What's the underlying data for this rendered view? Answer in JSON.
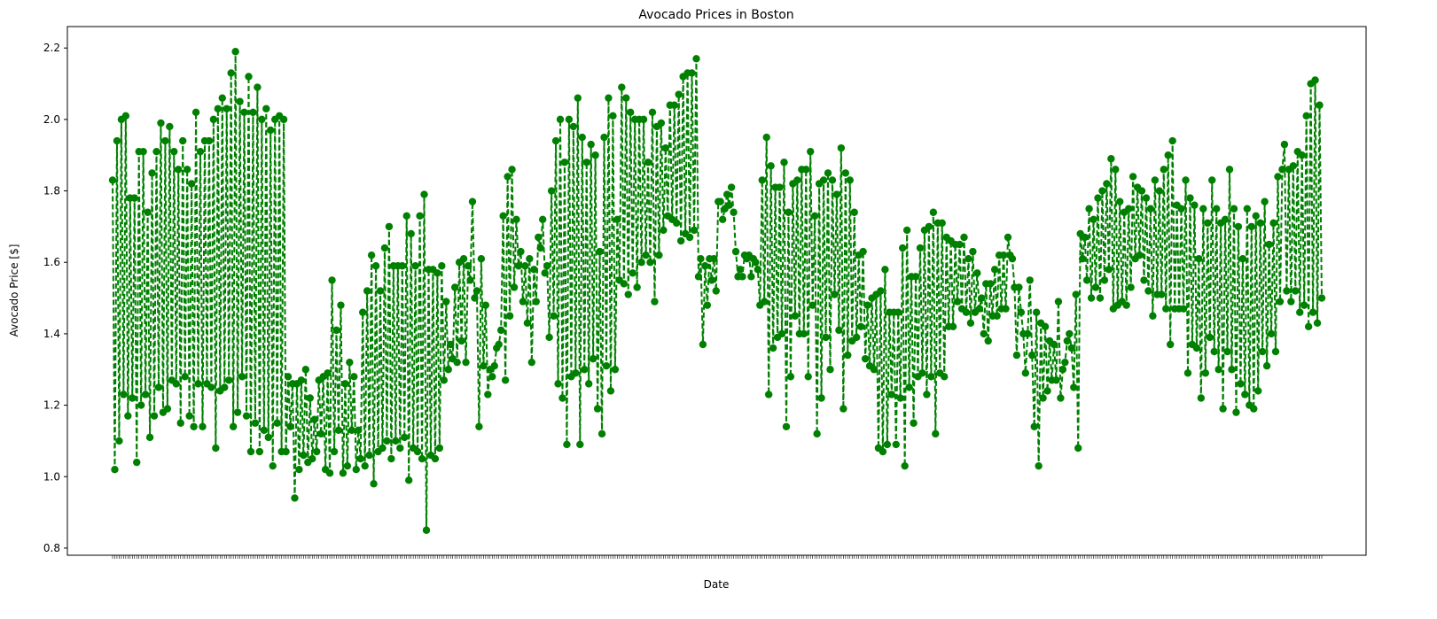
{
  "chart_data": {
    "type": "line",
    "title": "Avocado Prices in Boston",
    "xlabel": "Date",
    "ylabel": "Avocado Price [$]",
    "ylim": [
      0.78,
      2.26
    ],
    "yticks": [
      "0.8",
      "1.0",
      "1.2",
      "1.4",
      "1.6",
      "1.8",
      "2.0",
      "2.2"
    ],
    "grid": false,
    "legend": "none",
    "line_style": "dashed with circle markers",
    "color": "#008000",
    "series": [
      {
        "values": [
          1.83,
          1.02,
          1.94,
          1.1,
          2.0,
          1.23,
          2.01,
          1.17,
          1.78,
          1.22,
          1.78,
          1.04,
          1.91,
          1.2,
          1.91,
          1.23,
          1.74,
          1.11,
          1.85,
          1.17,
          1.91,
          1.25,
          1.99,
          1.18,
          1.94,
          1.19,
          1.98,
          1.27,
          1.91,
          1.26,
          1.86,
          1.15,
          1.94,
          1.28,
          1.86,
          1.17,
          1.82,
          1.14,
          2.02,
          1.26,
          1.91,
          1.14,
          1.94,
          1.26,
          1.94,
          1.25,
          2.0,
          1.08,
          2.03,
          1.24,
          2.06,
          1.25,
          2.03,
          1.27,
          2.13,
          1.14,
          2.19,
          1.18,
          2.05,
          1.28,
          2.02,
          1.17,
          2.12,
          1.07,
          2.02,
          1.15,
          2.09,
          1.07,
          2.0,
          1.13,
          2.03,
          1.11,
          1.97,
          1.03,
          2.0,
          1.15,
          2.01,
          1.07,
          2.0,
          1.07,
          1.28,
          1.14,
          1.26,
          0.94,
          1.26,
          1.02,
          1.27,
          1.06,
          1.3,
          1.04,
          1.22,
          1.05,
          1.16,
          1.07,
          1.27,
          1.12,
          1.28,
          1.02,
          1.29,
          1.01,
          1.55,
          1.07,
          1.41,
          1.13,
          1.48,
          1.01,
          1.26,
          1.03,
          1.32,
          1.13,
          1.28,
          1.02,
          1.13,
          1.05,
          1.46,
          1.03,
          1.52,
          1.06,
          1.62,
          0.98,
          1.59,
          1.07,
          1.52,
          1.08,
          1.64,
          1.1,
          1.7,
          1.05,
          1.59,
          1.1,
          1.59,
          1.08,
          1.59,
          1.11,
          1.73,
          0.99,
          1.68,
          1.08,
          1.59,
          1.07,
          1.73,
          1.05,
          1.79,
          0.85,
          1.58,
          1.06,
          1.58,
          1.05,
          1.57,
          1.08,
          1.59,
          1.27,
          1.49,
          1.3,
          1.37,
          1.33,
          1.53,
          1.32,
          1.6,
          1.38,
          1.61,
          1.32,
          1.59,
          1.55,
          1.77,
          1.5,
          1.52,
          1.14,
          1.61,
          1.31,
          1.48,
          1.23,
          1.3,
          1.28,
          1.31,
          1.36,
          1.37,
          1.41,
          1.73,
          1.27,
          1.84,
          1.45,
          1.86,
          1.53,
          1.72,
          1.59,
          1.63,
          1.49,
          1.59,
          1.43,
          1.61,
          1.32,
          1.58,
          1.49,
          1.67,
          1.64,
          1.72,
          1.57,
          1.59,
          1.39,
          1.8,
          1.45,
          1.94,
          1.26,
          2.0,
          1.22,
          1.88,
          1.09,
          2.0,
          1.28,
          1.98,
          1.29,
          2.06,
          1.09,
          1.95,
          1.3,
          1.88,
          1.26,
          1.93,
          1.33,
          1.9,
          1.19,
          1.63,
          1.12,
          1.95,
          1.31,
          2.06,
          1.24,
          2.01,
          1.3,
          1.72,
          1.55,
          2.09,
          1.54,
          2.06,
          1.51,
          2.02,
          1.57,
          2.0,
          1.53,
          2.0,
          1.6,
          2.0,
          1.62,
          1.88,
          1.6,
          2.02,
          1.49,
          1.98,
          1.62,
          1.99,
          1.69,
          1.92,
          1.73,
          2.04,
          1.72,
          2.04,
          1.71,
          2.07,
          1.66,
          2.12,
          1.68,
          2.13,
          1.67,
          2.13,
          1.69,
          2.17,
          1.56,
          1.61,
          1.37,
          1.59,
          1.48,
          1.61,
          1.55,
          1.61,
          1.52,
          1.77,
          1.77,
          1.72,
          1.75,
          1.79,
          1.76,
          1.81,
          1.74,
          1.63,
          1.56,
          1.58,
          1.56,
          1.62,
          1.61,
          1.62,
          1.56,
          1.61,
          1.6,
          1.58,
          1.48,
          1.83,
          1.49,
          1.95,
          1.23,
          1.87,
          1.36,
          1.81,
          1.39,
          1.81,
          1.4,
          1.88,
          1.14,
          1.74,
          1.28,
          1.82,
          1.45,
          1.83,
          1.4,
          1.86,
          1.4,
          1.86,
          1.28,
          1.91,
          1.48,
          1.73,
          1.12,
          1.82,
          1.22,
          1.83,
          1.39,
          1.85,
          1.3,
          1.83,
          1.51,
          1.79,
          1.41,
          1.92,
          1.19,
          1.85,
          1.34,
          1.83,
          1.38,
          1.74,
          1.39,
          1.62,
          1.42,
          1.63,
          1.33,
          1.48,
          1.31,
          1.5,
          1.3,
          1.51,
          1.08,
          1.52,
          1.07,
          1.58,
          1.09,
          1.46,
          1.23,
          1.46,
          1.09,
          1.46,
          1.22,
          1.64,
          1.03,
          1.69,
          1.25,
          1.56,
          1.15,
          1.56,
          1.28,
          1.64,
          1.29,
          1.69,
          1.23,
          1.7,
          1.28,
          1.74,
          1.12,
          1.71,
          1.29,
          1.71,
          1.28,
          1.67,
          1.42,
          1.66,
          1.42,
          1.65,
          1.49,
          1.65,
          1.47,
          1.67,
          1.46,
          1.61,
          1.43,
          1.63,
          1.46,
          1.57,
          1.47,
          1.5,
          1.4,
          1.54,
          1.38,
          1.54,
          1.45,
          1.58,
          1.45,
          1.62,
          1.47,
          1.62,
          1.47,
          1.67,
          1.62,
          1.61,
          1.53,
          1.34,
          1.53,
          1.46,
          1.4,
          1.29,
          1.4,
          1.55,
          1.34,
          1.14,
          1.46,
          1.03,
          1.43,
          1.22,
          1.42,
          1.24,
          1.38,
          1.27,
          1.37,
          1.27,
          1.49,
          1.22,
          1.3,
          1.32,
          1.38,
          1.4,
          1.36,
          1.25,
          1.51,
          1.08,
          1.68,
          1.61,
          1.67,
          1.55,
          1.75,
          1.5,
          1.72,
          1.53,
          1.78,
          1.5,
          1.8,
          1.55,
          1.82,
          1.58,
          1.89,
          1.47,
          1.86,
          1.48,
          1.77,
          1.49,
          1.74,
          1.48,
          1.75,
          1.53,
          1.84,
          1.61,
          1.81,
          1.62,
          1.8,
          1.55,
          1.78,
          1.52,
          1.75,
          1.45,
          1.83,
          1.51,
          1.8,
          1.51,
          1.86,
          1.47,
          1.9,
          1.37,
          1.94,
          1.47,
          1.76,
          1.47,
          1.75,
          1.47,
          1.83,
          1.29,
          1.78,
          1.37,
          1.76,
          1.36,
          1.61,
          1.22,
          1.75,
          1.29,
          1.71,
          1.39,
          1.83,
          1.35,
          1.75,
          1.3,
          1.71,
          1.19,
          1.72,
          1.35,
          1.86,
          1.3,
          1.75,
          1.18,
          1.7,
          1.26,
          1.61,
          1.23,
          1.75,
          1.2,
          1.7,
          1.19,
          1.73,
          1.24,
          1.71,
          1.35,
          1.77,
          1.31,
          1.65,
          1.4,
          1.71,
          1.35,
          1.84,
          1.49,
          1.86,
          1.93,
          1.52,
          1.86,
          1.49,
          1.87,
          1.52,
          1.91,
          1.46,
          1.9,
          1.48,
          2.01,
          1.42,
          2.1,
          1.46,
          2.11,
          1.43,
          2.04,
          1.5
        ]
      }
    ]
  }
}
